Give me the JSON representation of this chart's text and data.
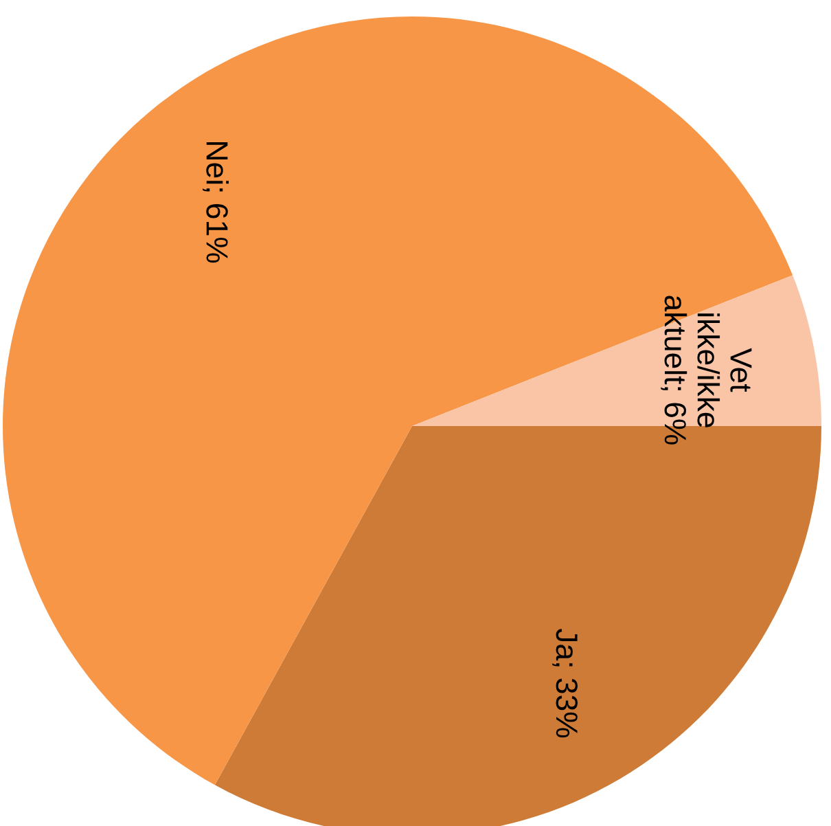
{
  "chart_data": {
    "type": "pie",
    "categories": [
      "Ja",
      "Nei",
      "Vet\nikke/ikke\naktuelt"
    ],
    "values": [
      33,
      61,
      6
    ],
    "colors": [
      "#cd7b37",
      "#f79646",
      "#fac4a6"
    ],
    "value_labels": [
      "33%",
      "61%",
      "6%"
    ]
  }
}
